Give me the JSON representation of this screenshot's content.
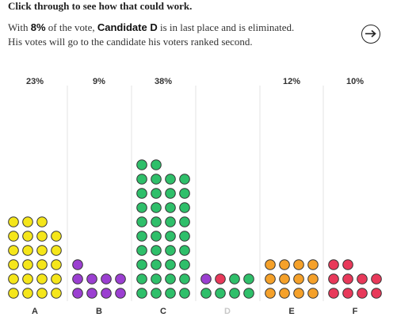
{
  "header": {
    "title": "Click through to see how that could work.",
    "line1_pre": "With ",
    "line1_pct": "8%",
    "line1_mid": " of the vote, ",
    "line1_cand": "Candidate D",
    "line1_post": " is in last place and is eliminated.",
    "line2": "His votes will go to the candidate his voters ranked second."
  },
  "next_button": {
    "icon": "arrow-right-icon"
  },
  "colors": {
    "A": "#f5e61a",
    "B": "#9b3fd1",
    "C": "#2fbf6a",
    "E": "#f5a12a",
    "F": "#e8395a",
    "outline": "#333333",
    "divider": "#e3e3e3"
  },
  "chart_data": {
    "type": "dot-column",
    "columns": [
      {
        "category": "A",
        "pct_label": "23%",
        "eliminated": false,
        "rows": [
          [
            "A",
            "A",
            "A",
            "A"
          ],
          [
            "A",
            "A",
            "A",
            "A"
          ],
          [
            "A",
            "A",
            "A",
            "A"
          ],
          [
            "A",
            "A",
            "A",
            "A"
          ],
          [
            "A",
            "A",
            "A",
            "A"
          ],
          [
            "A",
            "A",
            "A"
          ]
        ]
      },
      {
        "category": "B",
        "pct_label": "9%",
        "eliminated": false,
        "rows": [
          [
            "B",
            "B",
            "B",
            "B"
          ],
          [
            "B",
            "B",
            "B",
            "B"
          ],
          [
            "B"
          ]
        ]
      },
      {
        "category": "C",
        "pct_label": "38%",
        "eliminated": false,
        "rows": [
          [
            "C",
            "C",
            "C",
            "C"
          ],
          [
            "C",
            "C",
            "C",
            "C"
          ],
          [
            "C",
            "C",
            "C",
            "C"
          ],
          [
            "C",
            "C",
            "C",
            "C"
          ],
          [
            "C",
            "C",
            "C",
            "C"
          ],
          [
            "C",
            "C",
            "C",
            "C"
          ],
          [
            "C",
            "C",
            "C",
            "C"
          ],
          [
            "C",
            "C",
            "C",
            "C"
          ],
          [
            "C",
            "C",
            "C",
            "C"
          ],
          [
            "C",
            "C"
          ]
        ]
      },
      {
        "category": "D",
        "pct_label": "",
        "eliminated": true,
        "rows": [
          [
            "C",
            "C",
            "C",
            "C"
          ],
          [
            "B",
            "F",
            "C",
            "C"
          ]
        ]
      },
      {
        "category": "E",
        "pct_label": "12%",
        "eliminated": false,
        "rows": [
          [
            "E",
            "E",
            "E",
            "E"
          ],
          [
            "E",
            "E",
            "E",
            "E"
          ],
          [
            "E",
            "E",
            "E",
            "E"
          ]
        ]
      },
      {
        "category": "F",
        "pct_label": "10%",
        "eliminated": false,
        "rows": [
          [
            "F",
            "F",
            "F",
            "F"
          ],
          [
            "F",
            "F",
            "F",
            "F"
          ],
          [
            "F",
            "F"
          ]
        ]
      }
    ]
  }
}
